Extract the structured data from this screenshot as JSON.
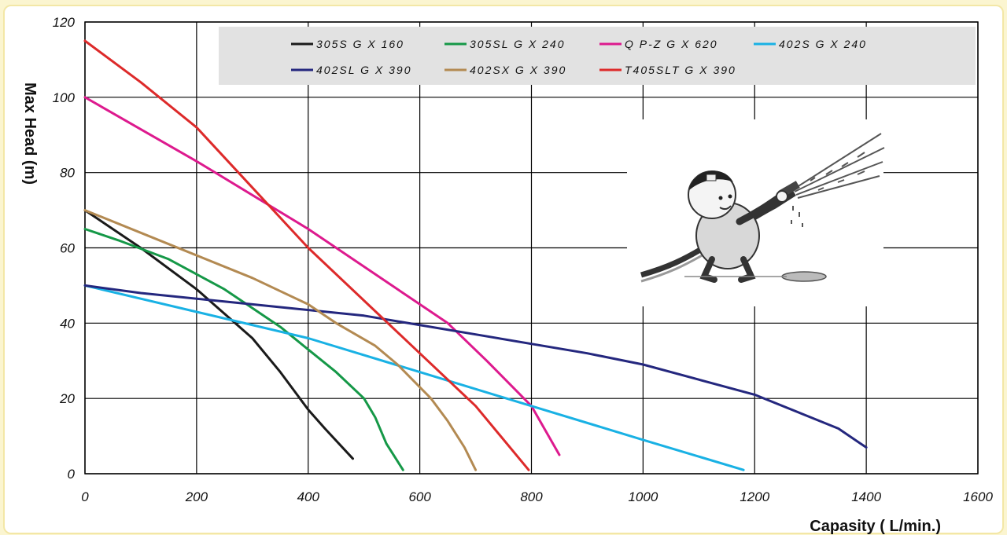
{
  "chart_data": {
    "type": "line",
    "xlabel": "Capasity ( L/min.)",
    "ylabel": "Max Head (m)",
    "xlim": [
      0,
      1600
    ],
    "ylim": [
      0,
      120
    ],
    "xticks": [
      "0",
      "200",
      "400",
      "600",
      "800",
      "1000",
      "1200",
      "1400",
      "1600"
    ],
    "yticks": [
      "0",
      "20",
      "40",
      "60",
      "80",
      "100",
      "120"
    ],
    "grid": true,
    "legend_position": "top",
    "series": [
      {
        "name": "305S G X 160",
        "color": "#1a1a1a",
        "points": [
          [
            0,
            70
          ],
          [
            100,
            60
          ],
          [
            200,
            49
          ],
          [
            300,
            36
          ],
          [
            350,
            27
          ],
          [
            400,
            17
          ],
          [
            430,
            12
          ],
          [
            480,
            4
          ]
        ]
      },
      {
        "name": "305SL G X 240",
        "color": "#159847",
        "points": [
          [
            0,
            65
          ],
          [
            60,
            62
          ],
          [
            150,
            57
          ],
          [
            250,
            49
          ],
          [
            350,
            39
          ],
          [
            450,
            27
          ],
          [
            500,
            20
          ],
          [
            520,
            15
          ],
          [
            540,
            8
          ],
          [
            570,
            1
          ]
        ]
      },
      {
        "name": "Q P-Z G X 620",
        "color": "#dd1a8e",
        "points": [
          [
            0,
            100
          ],
          [
            200,
            83
          ],
          [
            400,
            65
          ],
          [
            550,
            50
          ],
          [
            650,
            40
          ],
          [
            720,
            30
          ],
          [
            800,
            18
          ],
          [
            850,
            5
          ]
        ]
      },
      {
        "name": "402S G X 240",
        "color": "#19b1e4",
        "points": [
          [
            0,
            50
          ],
          [
            200,
            43
          ],
          [
            400,
            36
          ],
          [
            600,
            27
          ],
          [
            800,
            18
          ],
          [
            1000,
            9
          ],
          [
            1180,
            1
          ]
        ]
      },
      {
        "name": "402SL G X 390",
        "color": "#24277e",
        "points": [
          [
            0,
            50
          ],
          [
            100,
            48
          ],
          [
            300,
            45
          ],
          [
            500,
            42
          ],
          [
            700,
            37
          ],
          [
            900,
            32
          ],
          [
            1000,
            29
          ],
          [
            1100,
            25
          ],
          [
            1200,
            21
          ],
          [
            1300,
            15
          ],
          [
            1350,
            12
          ],
          [
            1390,
            8
          ],
          [
            1400,
            7
          ]
        ]
      },
      {
        "name": "402SX G X 390",
        "color": "#b38a52",
        "points": [
          [
            0,
            70
          ],
          [
            150,
            61
          ],
          [
            300,
            52
          ],
          [
            400,
            45
          ],
          [
            450,
            40
          ],
          [
            520,
            34
          ],
          [
            560,
            29
          ],
          [
            620,
            20
          ],
          [
            650,
            14
          ],
          [
            680,
            7
          ],
          [
            700,
            1
          ]
        ]
      },
      {
        "name": "T405SLT G X 390",
        "color": "#dd2a2a",
        "points": [
          [
            0,
            115
          ],
          [
            100,
            104
          ],
          [
            200,
            92
          ],
          [
            300,
            76
          ],
          [
            400,
            60
          ],
          [
            500,
            46
          ],
          [
            600,
            32
          ],
          [
            700,
            18
          ],
          [
            795,
            1
          ]
        ]
      }
    ]
  },
  "illustration": {
    "name": "cartoon-worker-with-hose"
  }
}
